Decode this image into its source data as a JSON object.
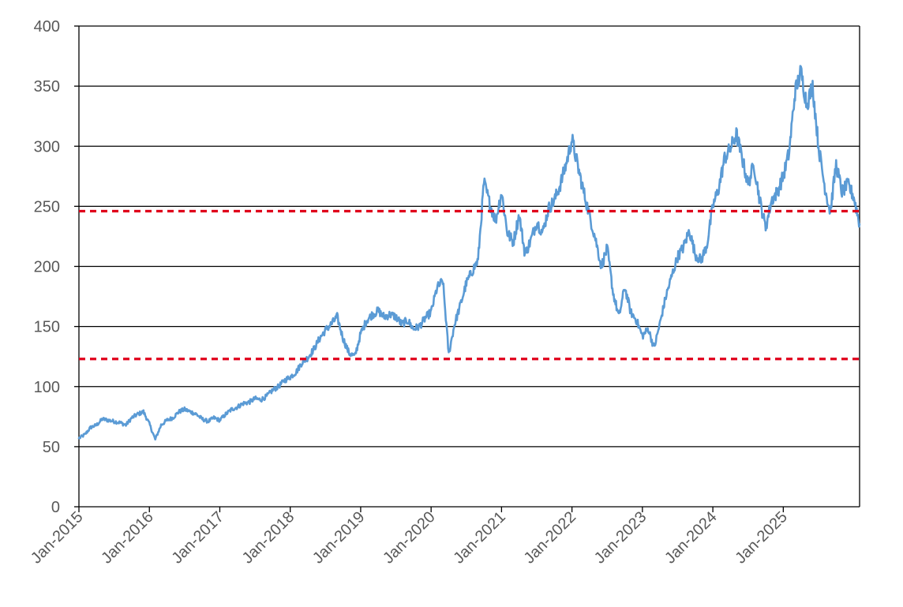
{
  "chart_data": {
    "type": "line",
    "title": "",
    "xlabel": "",
    "ylabel": "",
    "ylim": [
      0,
      400
    ],
    "yticks": [
      0,
      50,
      100,
      150,
      200,
      250,
      300,
      350,
      400
    ],
    "xlim": [
      "2015-01",
      "2025-08"
    ],
    "x_ticks": [
      {
        "label": "Jan-2015",
        "date": "2015-01"
      },
      {
        "label": "Jan-2016",
        "date": "2016-01"
      },
      {
        "label": "Jan-2017",
        "date": "2017-01"
      },
      {
        "label": "Jan-2018",
        "date": "2018-01"
      },
      {
        "label": "Jan-2019",
        "date": "2019-01"
      },
      {
        "label": "Jan-2020",
        "date": "2020-01"
      },
      {
        "label": "Jan-2021",
        "date": "2021-01"
      },
      {
        "label": "Jan-2022",
        "date": "2022-01"
      },
      {
        "label": "Jan-2023",
        "date": "2023-01"
      },
      {
        "label": "Jan-2024",
        "date": "2024-01"
      },
      {
        "label": "Jan-2025",
        "date": "2025-01"
      }
    ],
    "grid": "horizontal",
    "legend": "none",
    "series": [
      {
        "color": "#5B9BD5",
        "points": [
          [
            "2015-01",
            57
          ],
          [
            "2015-02",
            60
          ],
          [
            "2015-03",
            66
          ],
          [
            "2015-04",
            68
          ],
          [
            "2015-05",
            73
          ],
          [
            "2015-06",
            72
          ],
          [
            "2015-07",
            71
          ],
          [
            "2015-08",
            70
          ],
          [
            "2015-09",
            68
          ],
          [
            "2015-10",
            74
          ],
          [
            "2015-11",
            77
          ],
          [
            "2015-12",
            79
          ],
          [
            "2016-01",
            69
          ],
          [
            "2016-02",
            56
          ],
          [
            "2016-03",
            68
          ],
          [
            "2016-04",
            72
          ],
          [
            "2016-05",
            74
          ],
          [
            "2016-06",
            79
          ],
          [
            "2016-07",
            81
          ],
          [
            "2016-08",
            79
          ],
          [
            "2016-09",
            77
          ],
          [
            "2016-10",
            73
          ],
          [
            "2016-11",
            71
          ],
          [
            "2016-12",
            74
          ],
          [
            "2017-01",
            72
          ],
          [
            "2017-02",
            77
          ],
          [
            "2017-03",
            81
          ],
          [
            "2017-04",
            83
          ],
          [
            "2017-05",
            86
          ],
          [
            "2017-06",
            87
          ],
          [
            "2017-07",
            90
          ],
          [
            "2017-08",
            89
          ],
          [
            "2017-09",
            92
          ],
          [
            "2017-10",
            97
          ],
          [
            "2017-11",
            100
          ],
          [
            "2017-12",
            105
          ],
          [
            "2018-01",
            108
          ],
          [
            "2018-02",
            112
          ],
          [
            "2018-03",
            120
          ],
          [
            "2018-04",
            124
          ],
          [
            "2018-05",
            131
          ],
          [
            "2018-06",
            140
          ],
          [
            "2018-07",
            147
          ],
          [
            "2018-08",
            152
          ],
          [
            "2018-09",
            158
          ],
          [
            "2018-10",
            140
          ],
          [
            "2018-11",
            128
          ],
          [
            "2018-12",
            125
          ],
          [
            "2019-01",
            144
          ],
          [
            "2019-02",
            155
          ],
          [
            "2019-03",
            160
          ],
          [
            "2019-04",
            163
          ],
          [
            "2019-05",
            158
          ],
          [
            "2019-06",
            160
          ],
          [
            "2019-07",
            158
          ],
          [
            "2019-08",
            152
          ],
          [
            "2019-09",
            155
          ],
          [
            "2019-10",
            148
          ],
          [
            "2019-11",
            150
          ],
          [
            "2019-12",
            157
          ],
          [
            "2020-01",
            162
          ],
          [
            "2020-02",
            182
          ],
          [
            "2020-03",
            188
          ],
          [
            "2020-04",
            127
          ],
          [
            "2020-05",
            152
          ],
          [
            "2020-06",
            168
          ],
          [
            "2020-07",
            186
          ],
          [
            "2020-08",
            196
          ],
          [
            "2020-09",
            205
          ],
          [
            "2020-10",
            270
          ],
          [
            "2020-11",
            252
          ],
          [
            "2020-12",
            238
          ],
          [
            "2021-01",
            262
          ],
          [
            "2021-02",
            228
          ],
          [
            "2021-03",
            220
          ],
          [
            "2021-04",
            243
          ],
          [
            "2021-05",
            210
          ],
          [
            "2021-06",
            222
          ],
          [
            "2021-07",
            237
          ],
          [
            "2021-08",
            228
          ],
          [
            "2021-09",
            248
          ],
          [
            "2021-10",
            255
          ],
          [
            "2021-11",
            268
          ],
          [
            "2021-12",
            285
          ],
          [
            "2022-01",
            306
          ],
          [
            "2022-02",
            283
          ],
          [
            "2022-03",
            262
          ],
          [
            "2022-04",
            242
          ],
          [
            "2022-05",
            223
          ],
          [
            "2022-06",
            200
          ],
          [
            "2022-07",
            215
          ],
          [
            "2022-08",
            178
          ],
          [
            "2022-09",
            158
          ],
          [
            "2022-10",
            183
          ],
          [
            "2022-11",
            162
          ],
          [
            "2022-12",
            155
          ],
          [
            "2023-01",
            142
          ],
          [
            "2023-02",
            148
          ],
          [
            "2023-03",
            132
          ],
          [
            "2023-04",
            153
          ],
          [
            "2023-05",
            175
          ],
          [
            "2023-06",
            192
          ],
          [
            "2023-07",
            208
          ],
          [
            "2023-08",
            216
          ],
          [
            "2023-09",
            230
          ],
          [
            "2023-10",
            210
          ],
          [
            "2023-11",
            205
          ],
          [
            "2023-12",
            218
          ],
          [
            "2024-01",
            250
          ],
          [
            "2024-02",
            265
          ],
          [
            "2024-03",
            290
          ],
          [
            "2024-04",
            298
          ],
          [
            "2024-05",
            310
          ],
          [
            "2024-06",
            290
          ],
          [
            "2024-07",
            268
          ],
          [
            "2024-08",
            285
          ],
          [
            "2024-09",
            255
          ],
          [
            "2024-10",
            232
          ],
          [
            "2024-11",
            255
          ],
          [
            "2024-12",
            262
          ],
          [
            "2025-01",
            275
          ],
          [
            "2025-02",
            295
          ],
          [
            "2025-03",
            345
          ],
          [
            "2025-04",
            362
          ],
          [
            "2025-05",
            335
          ],
          [
            "2025-06",
            350
          ],
          [
            "2025-07",
            300
          ],
          [
            "2025-08",
            268
          ],
          [
            "2025-09",
            245
          ],
          [
            "2025-10",
            285
          ],
          [
            "2025-11",
            262
          ],
          [
            "2025-12",
            268
          ],
          [
            "2026-01",
            258
          ],
          [
            "2026-02",
            235
          ]
        ]
      }
    ],
    "reference_lines": [
      {
        "y": 246,
        "color": "#E0001B",
        "style": "dashed"
      },
      {
        "y": 123,
        "color": "#E0001B",
        "style": "dashed"
      }
    ]
  }
}
